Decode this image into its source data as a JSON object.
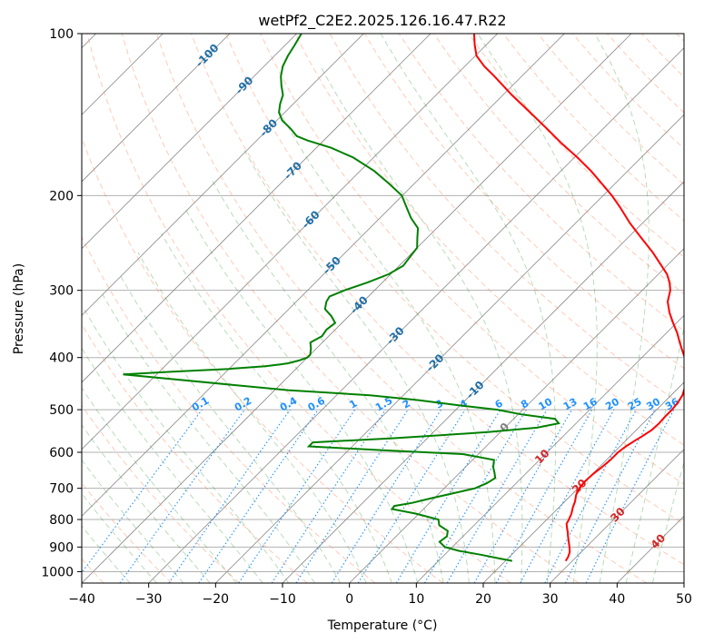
{
  "chart_data": {
    "type": "skew-t",
    "title": "wetPf2_C2E2.2025.126.16.47.R22",
    "xlabel": "Temperature (°C)",
    "ylabel": "Pressure (hPa)",
    "xlim": [
      -40,
      50
    ],
    "ylim": [
      1050,
      100
    ],
    "y_scale": "log",
    "skew": 1,
    "grid": true,
    "x_ticks": [
      -40,
      -30,
      -20,
      -10,
      0,
      10,
      20,
      30,
      40,
      50
    ],
    "y_ticks": [
      100,
      200,
      300,
      400,
      500,
      600,
      700,
      800,
      900,
      1000
    ],
    "colors": {
      "temperature": "#ff0000",
      "dewpoint": "#008000",
      "dry_adiabat": "#ff7f50",
      "moist_adiabat": "#228b22",
      "mixing_ratio": "#1e90ff",
      "isotherm_label_blue": "#1f6fa8",
      "isotherm_label_red": "#d62728",
      "grid": "#b0b0b0"
    },
    "isotherm_labels": [
      {
        "t": -100,
        "p": 110,
        "text": "-100"
      },
      {
        "t": -90,
        "p": 125,
        "text": "-90"
      },
      {
        "t": -80,
        "p": 150,
        "text": "-80"
      },
      {
        "t": -70,
        "p": 180,
        "text": "-70"
      },
      {
        "t": -60,
        "p": 222,
        "text": "-60"
      },
      {
        "t": -50,
        "p": 270,
        "text": "-50"
      },
      {
        "t": -40,
        "p": 320,
        "text": "-40"
      },
      {
        "t": -30,
        "p": 365,
        "text": "-30"
      },
      {
        "t": -20,
        "p": 410,
        "text": "-20"
      },
      {
        "t": -10,
        "p": 460,
        "text": "-10"
      },
      {
        "t": 0,
        "p": 540,
        "text": "0"
      },
      {
        "t": 10,
        "p": 612,
        "text": "10"
      },
      {
        "t": 20,
        "p": 695,
        "text": "20"
      },
      {
        "t": 30,
        "p": 785,
        "text": "30"
      },
      {
        "t": 40,
        "p": 880,
        "text": "40"
      }
    ],
    "mixing_ratio_labels": [
      "0.1",
      "0.2",
      "0.4",
      "0.6",
      "1",
      "1.5",
      "2",
      "3",
      "4",
      "6",
      "8",
      "10",
      "13",
      "16",
      "20",
      "25",
      "30",
      "36"
    ],
    "mixing_ratio_values": [
      0.1,
      0.2,
      0.4,
      0.6,
      1,
      1.5,
      2,
      3,
      4,
      6,
      8,
      10,
      13,
      16,
      20,
      25,
      30,
      36
    ],
    "mixing_ratio_label_pressure": 500,
    "temperature_profile": {
      "name": "",
      "p": [
        955,
        940,
        920,
        900,
        880,
        860,
        840,
        830,
        815,
        800,
        780,
        760,
        740,
        720,
        700,
        680,
        660,
        640,
        620,
        600,
        585,
        570,
        560,
        545,
        530,
        515,
        500,
        485,
        470,
        455,
        440,
        425,
        410,
        400,
        390,
        375,
        360,
        345,
        330,
        315,
        300,
        290,
        280,
        270,
        255,
        240,
        225,
        210,
        200,
        190,
        180,
        170,
        160,
        150,
        140,
        130,
        120,
        115,
        110,
        105,
        100
      ],
      "t": [
        29.0,
        28.8,
        28.3,
        27.5,
        26.6,
        25.7,
        24.8,
        24.3,
        23.6,
        23.3,
        22.8,
        22.1,
        21.5,
        20.7,
        20.2,
        20.0,
        20.1,
        20.4,
        20.6,
        20.6,
        20.9,
        21.4,
        21.8,
        22.3,
        22.4,
        22.3,
        22.3,
        22.1,
        21.7,
        20.9,
        19.8,
        18.7,
        17.4,
        16.4,
        15.2,
        13.4,
        11.6,
        9.5,
        7.4,
        5.5,
        4.2,
        2.9,
        1.3,
        -0.8,
        -4.1,
        -7.9,
        -11.9,
        -15.8,
        -18.7,
        -22.0,
        -25.5,
        -29.5,
        -34.0,
        -38.5,
        -43.4,
        -48.7,
        -54.1,
        -57.1,
        -59.8,
        -61.7,
        -63.5
      ]
    },
    "dewpoint_profile": {
      "name": "",
      "p": [
        955,
        945,
        930,
        915,
        900,
        880,
        860,
        840,
        820,
        800,
        780,
        765,
        755,
        745,
        730,
        715,
        700,
        685,
        670,
        655,
        640,
        620,
        605,
        595,
        585,
        575,
        565,
        558,
        550,
        540,
        530,
        520,
        510,
        500,
        490,
        480,
        470,
        460,
        430,
        425,
        420,
        415,
        412,
        410,
        405,
        400,
        395,
        385,
        375,
        365,
        355,
        345,
        335,
        325,
        315,
        308,
        300,
        290,
        280,
        270,
        260,
        250,
        240,
        230,
        220,
        210,
        200,
        190,
        180,
        170,
        163,
        158,
        155,
        150,
        145,
        140,
        135,
        130,
        125,
        120,
        115,
        110,
        105,
        100
      ],
      "t": [
        21.0,
        18.7,
        15.4,
        11.6,
        8.9,
        7.3,
        7.6,
        6.9,
        4.8,
        3.8,
        -0.5,
        -4.7,
        -4.8,
        -2.6,
        -0.4,
        2.1,
        4.6,
        5.6,
        6.1,
        5.2,
        4.2,
        3.2,
        -2.2,
        -14.5,
        -26.5,
        -26.5,
        -15.0,
        -8.5,
        -1.7,
        4.8,
        7.4,
        6.2,
        0.4,
        -3.8,
        -10.7,
        -17.0,
        -25.0,
        -38.0,
        -65.0,
        -58.0,
        -50.0,
        -45.0,
        -43.0,
        -42.0,
        -40.8,
        -40.0,
        -40.0,
        -40.8,
        -41.8,
        -41.0,
        -41.3,
        -41.0,
        -42.6,
        -44.6,
        -45.5,
        -45.8,
        -44.5,
        -42.2,
        -40.3,
        -39.4,
        -39.7,
        -40.0,
        -41.4,
        -42.8,
        -45.4,
        -47.7,
        -50.1,
        -53.8,
        -57.9,
        -63.0,
        -67.8,
        -72.4,
        -74.7,
        -76.8,
        -79.2,
        -80.9,
        -82.0,
        -82.9,
        -84.5,
        -86.0,
        -87.2,
        -88.0,
        -88.6,
        -89.3
      ]
    }
  }
}
